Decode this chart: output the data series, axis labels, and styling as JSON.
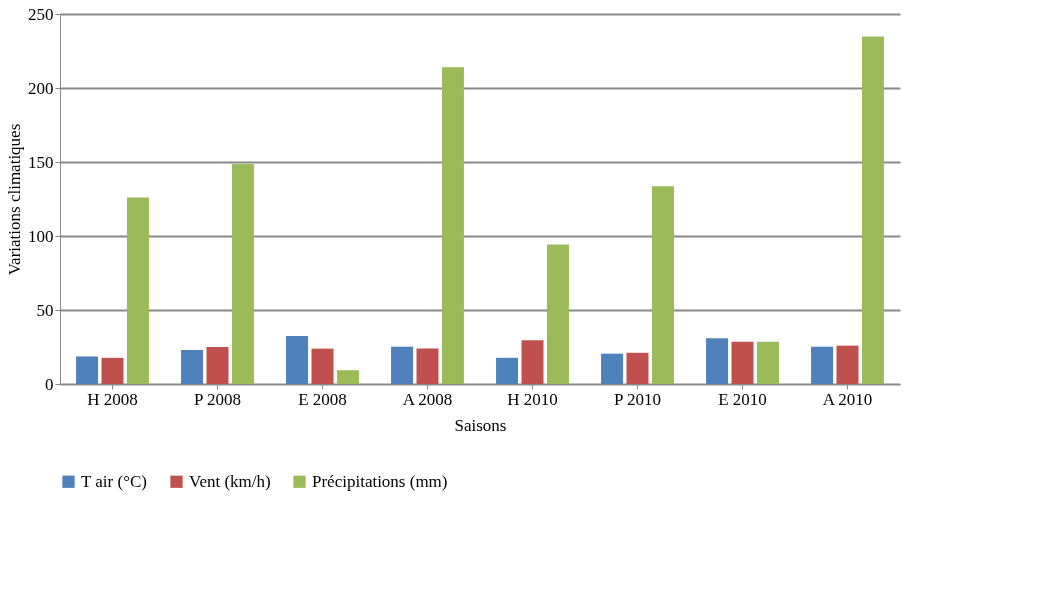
{
  "chart_data": {
    "type": "bar",
    "xlabel": "Saisons",
    "ylabel": "Variations climatiques",
    "categories": [
      "H 2008",
      "P 2008",
      "E 2008",
      "A 2008",
      "H 2010",
      "P 2010",
      "E 2010",
      "A 2010"
    ],
    "series": [
      {
        "name": "T air (°C)",
        "color": "#4f81bd",
        "values": [
          18.6,
          23,
          32.5,
          25.2,
          17.7,
          20.5,
          30.9,
          25.2
        ]
      },
      {
        "name": "Vent (km/h)",
        "color": "#c0504d",
        "values": [
          17.7,
          25,
          23.9,
          24,
          29.5,
          21.1,
          28.6,
          25.9
        ]
      },
      {
        "name": "Précipitations (mm)",
        "color": "#9bbb59",
        "values": [
          126,
          148.6,
          9.3,
          214,
          94.3,
          133.6,
          28.6,
          234.8
        ]
      }
    ],
    "ylim": [
      0,
      250
    ],
    "yticks": [
      0,
      50,
      100,
      150,
      200,
      250
    ],
    "grid": "y",
    "legend": "bottom"
  }
}
